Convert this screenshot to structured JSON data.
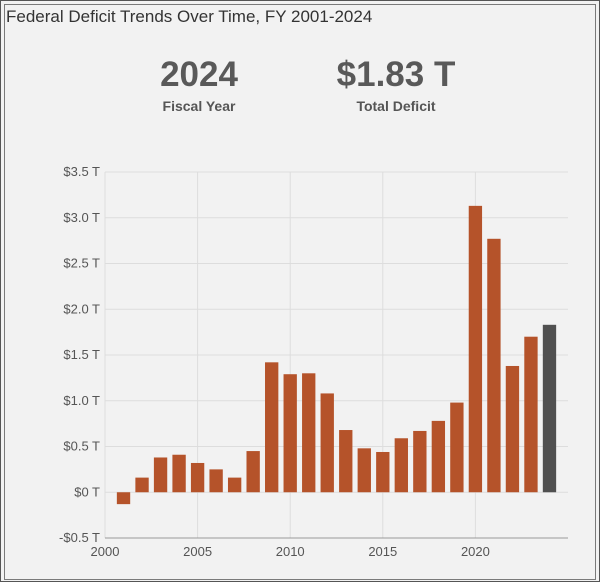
{
  "title": "Federal Deficit Trends Over Time, FY 2001-2024",
  "stats": [
    {
      "value": "2024",
      "label": "Fiscal Year"
    },
    {
      "value": "$1.83 T",
      "label": "Total Deficit"
    }
  ],
  "colors": {
    "bar": "#b5532a",
    "highlight": "#505050",
    "grid": "#dddddd",
    "axis": "#999999"
  },
  "chart_data": {
    "type": "bar",
    "title": "Federal Deficit Trends Over Time, FY 2001-2024",
    "x": [
      2001,
      2002,
      2003,
      2004,
      2005,
      2006,
      2007,
      2008,
      2009,
      2010,
      2011,
      2012,
      2013,
      2014,
      2015,
      2016,
      2017,
      2018,
      2019,
      2020,
      2021,
      2022,
      2023,
      2024
    ],
    "values": [
      -0.13,
      0.16,
      0.38,
      0.41,
      0.32,
      0.25,
      0.16,
      0.45,
      1.42,
      1.29,
      1.3,
      1.08,
      0.68,
      0.48,
      0.44,
      0.59,
      0.67,
      0.78,
      0.98,
      3.13,
      2.77,
      1.38,
      1.7,
      1.83
    ],
    "unit": "trillion USD",
    "highlight_x": 2024,
    "xlim": [
      2000,
      2025
    ],
    "ylim": [
      -0.5,
      3.5
    ],
    "x_ticks": [
      2000,
      2005,
      2010,
      2015,
      2020
    ],
    "y_ticks": [
      -0.5,
      0,
      0.5,
      1.0,
      1.5,
      2.0,
      2.5,
      3.0,
      3.5
    ],
    "y_tick_labels": [
      "-$0.5 T",
      "$0 T",
      "$0.5 T",
      "$1.0 T",
      "$1.5 T",
      "$2.0 T",
      "$2.5 T",
      "$3.0 T",
      "$3.5 T"
    ],
    "grid": true,
    "xlabel": "",
    "ylabel": ""
  }
}
